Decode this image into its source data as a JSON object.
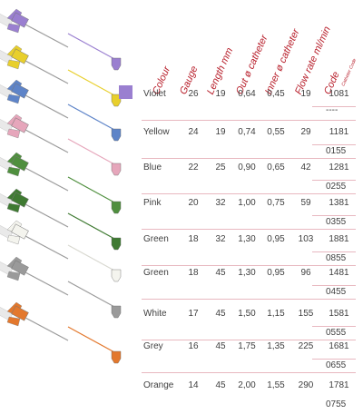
{
  "headers": {
    "colour": "Colour",
    "gauge": "Gauge",
    "length": "Length mm",
    "out_d": "Out ø catheter",
    "inner_d": "Inner ø catheter",
    "flow": "Flow rate ml/min",
    "code": "Code",
    "code_sub": "Catheter Code"
  },
  "rows": [
    {
      "colour_name": "Violet",
      "hex": "#9a7fd0",
      "gauge": "26",
      "length": "19",
      "out": "0,64",
      "inner": "0,45",
      "flow": "19",
      "code1": "1081",
      "code2": "----"
    },
    {
      "colour_name": "Yellow",
      "hex": "#e8cf2c",
      "gauge": "24",
      "length": "19",
      "out": "0,74",
      "inner": "0,55",
      "flow": "29",
      "code1": "1181",
      "code2": "0155"
    },
    {
      "colour_name": "Blue",
      "hex": "#5e84c8",
      "gauge": "22",
      "length": "25",
      "out": "0,90",
      "inner": "0,65",
      "flow": "42",
      "code1": "1281",
      "code2": "0255"
    },
    {
      "colour_name": "Pink",
      "hex": "#e6a6bb",
      "gauge": "20",
      "length": "32",
      "out": "1,00",
      "inner": "0,75",
      "flow": "59",
      "code1": "1381",
      "code2": "0355"
    },
    {
      "colour_name": "Green",
      "hex": "#4f8f3e",
      "gauge": "18",
      "length": "32",
      "out": "1,30",
      "inner": "0,95",
      "flow": "103",
      "code1": "1881",
      "code2": "0855"
    },
    {
      "colour_name": "Green",
      "hex": "#3f7a32",
      "gauge": "18",
      "length": "45",
      "out": "1,30",
      "inner": "0,95",
      "flow": "96",
      "code1": "1481",
      "code2": "0455"
    },
    {
      "colour_name": "White",
      "hex": "#f4f4ee",
      "gauge": "17",
      "length": "45",
      "out": "1,50",
      "inner": "1,15",
      "flow": "155",
      "code1": "1581",
      "code2": "0555"
    },
    {
      "colour_name": "Grey",
      "hex": "#9a9a9a",
      "gauge": "16",
      "length": "45",
      "out": "1,75",
      "inner": "1,35",
      "flow": "225",
      "code1": "1681",
      "code2": "0655"
    },
    {
      "colour_name": "Orange",
      "hex": "#e3782d",
      "gauge": "14",
      "length": "45",
      "out": "2,00",
      "inner": "1,55",
      "flow": "290",
      "code1": "1781",
      "code2": "0755"
    }
  ],
  "colors": {
    "header_red": "#b8202c",
    "divider": "#e8b8c0",
    "text": "#404040"
  },
  "icons": [
    "iv-cannula-violet",
    "iv-cannula-yellow",
    "iv-cannula-blue",
    "iv-cannula-pink",
    "iv-cannula-green",
    "iv-cannula-green-long",
    "iv-cannula-white",
    "iv-cannula-grey",
    "iv-cannula-orange"
  ]
}
